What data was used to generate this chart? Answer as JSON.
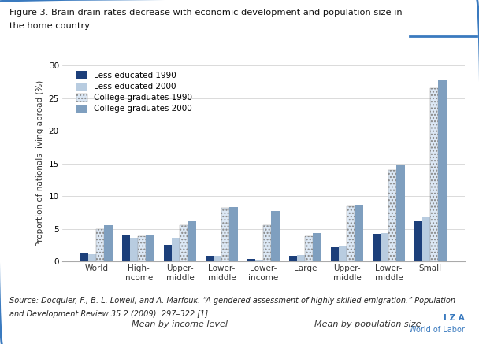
{
  "title_line1": "Figure 3. Brain drain rates decrease with economic development and population size in",
  "title_line2": "the home country",
  "ylabel": "Proportion of nationals living abroad (%)",
  "ylim": [
    0,
    30
  ],
  "yticks": [
    0,
    5,
    10,
    15,
    20,
    25,
    30
  ],
  "categories": [
    "World",
    "High-\nincome",
    "Upper-\nmiddle",
    "Lower-\nmiddle",
    "Lower-\nincome",
    "Large",
    "Upper-\nmiddle",
    "Lower-\nmiddle",
    "Small"
  ],
  "group_labels": [
    "Mean by income level",
    "Mean by population size"
  ],
  "group_income_indices": [
    0,
    1,
    2,
    3,
    4
  ],
  "group_pop_indices": [
    5,
    6,
    7,
    8
  ],
  "series": {
    "less_edu_1990": [
      1.2,
      4.0,
      2.6,
      0.8,
      0.4,
      0.9,
      2.2,
      4.2,
      6.1
    ],
    "less_edu_2000": [
      1.1,
      3.6,
      3.6,
      0.8,
      0.3,
      1.0,
      2.3,
      4.3,
      6.8
    ],
    "college_1990": [
      5.0,
      3.9,
      5.5,
      8.2,
      5.6,
      3.9,
      8.5,
      14.0,
      26.5
    ],
    "college_2000": [
      5.5,
      4.0,
      6.2,
      8.3,
      7.7,
      4.3,
      8.6,
      14.8,
      27.8
    ]
  },
  "color_less_edu_1990": "#1c3f7a",
  "color_less_edu_2000": "#b8cce0",
  "color_college_1990": "#dce8f5",
  "color_college_1990_edge": "#888888",
  "color_college_2000": "#7f9fbf",
  "hatch_college_1990": "....",
  "bar_width": 0.19,
  "source_line1": "Source: Docquier, F., B. L. Lowell, and A. Marfouk. “A gendered assessment of highly skilled emigration.” Population",
  "source_line2": "and Development Review 35:2 (2009): 297–322 [1].",
  "iza_line1": "I Z A",
  "iza_line2": "World of Labor",
  "border_color": "#3a7abf",
  "background_color": "#ffffff"
}
